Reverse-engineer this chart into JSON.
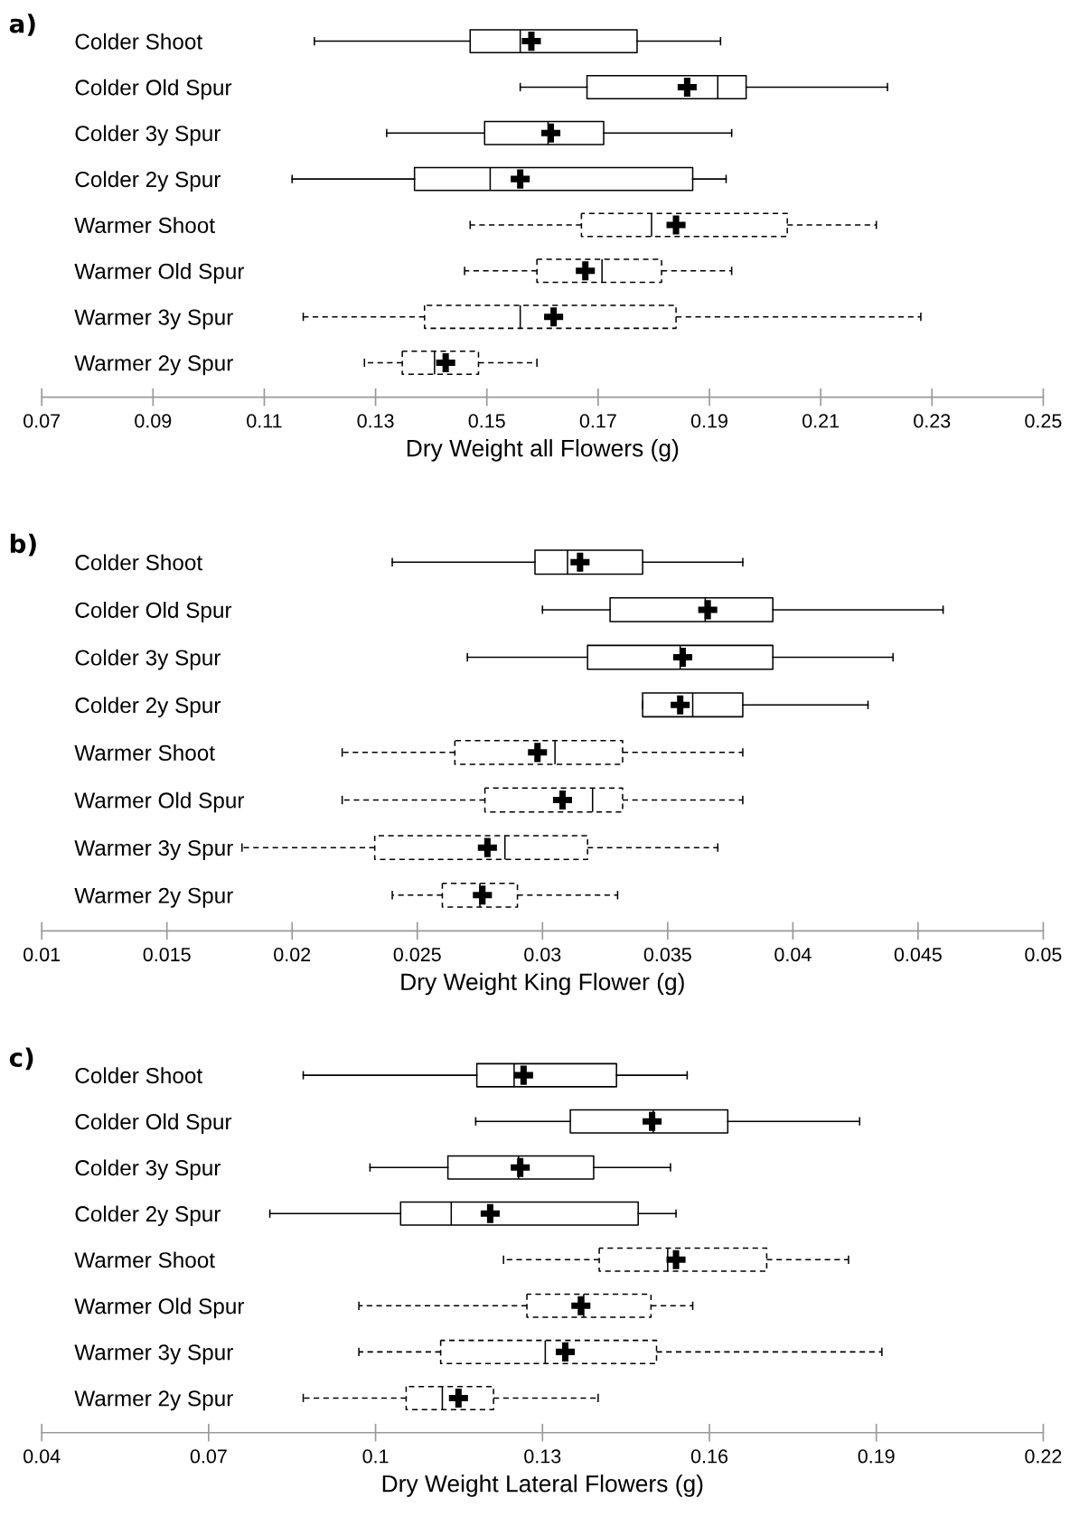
{
  "chart_data": [
    {
      "type": "box",
      "title": "a)",
      "xlabel": "Dry Weight all Flowers (g)",
      "orientation": "horizontal",
      "categories": [
        "Colder Shoot",
        "Colder Old Spur",
        "Colder 3y Spur",
        "Colder 2y Spur",
        "Warmer Shoot",
        "Warmer Old Spur",
        "Warmer 3y Spur",
        "Warmer 2y Spur"
      ],
      "xlim": [
        0.07,
        0.25
      ],
      "xticks": [
        0.07,
        0.09,
        0.11,
        0.13,
        0.15,
        0.17,
        0.19,
        0.21,
        0.23,
        0.25
      ],
      "grid": false,
      "legend": false,
      "series": [
        {
          "color": "#000000",
          "line_style": "solid",
          "boxes": [
            {
              "low": 0.119,
              "q1": 0.147,
              "median": 0.156,
              "q3": 0.177,
              "high": 0.192
            },
            {
              "low": 0.156,
              "q1": 0.168,
              "median": 0.1915,
              "q3": 0.1966,
              "high": 0.222
            },
            {
              "low": 0.132,
              "q1": 0.1496,
              "median": 0.161,
              "q3": 0.171,
              "high": 0.194
            },
            {
              "low": 0.115,
              "q1": 0.137,
              "median": 0.1506,
              "q3": 0.187,
              "high": 0.193
            },
            null,
            null,
            null,
            null
          ]
        },
        {
          "color": "#000000",
          "line_style": "dashed",
          "boxes": [
            null,
            null,
            null,
            null,
            {
              "low": 0.147,
              "q1": 0.167,
              "median": 0.1796,
              "q3": 0.204,
              "high": 0.22
            },
            {
              "low": 0.146,
              "q1": 0.159,
              "median": 0.1707,
              "q3": 0.1814,
              "high": 0.194
            },
            {
              "low": 0.117,
              "q1": 0.1388,
              "median": 0.156,
              "q3": 0.184,
              "high": 0.228
            },
            {
              "low": 0.128,
              "q1": 0.1348,
              "median": 0.1406,
              "q3": 0.1485,
              "high": 0.159
            }
          ]
        },
        {
          "type": "scatter",
          "color": "#000000",
          "marker": "cross",
          "values": [
            0.158,
            0.186,
            0.1615,
            0.156,
            0.184,
            0.1677,
            0.162,
            0.1426
          ]
        }
      ]
    },
    {
      "type": "box",
      "title": "b)",
      "xlabel": "Dry Weight King Flower (g)",
      "orientation": "horizontal",
      "categories": [
        "Colder Shoot",
        "Colder Old Spur",
        "Colder 3y Spur",
        "Colder 2y Spur",
        "Warmer Shoot",
        "Warmer Old Spur",
        "Warmer 3y Spur",
        "Warmer 2y Spur"
      ],
      "xlim": [
        0.01,
        0.05
      ],
      "xticks": [
        0.01,
        0.015,
        0.02,
        0.025,
        0.03,
        0.035,
        0.04,
        0.045,
        0.05
      ],
      "grid": false,
      "legend": false,
      "series": [
        {
          "color": "#000000",
          "line_style": "solid",
          "boxes": [
            {
              "low": 0.024,
              "q1": 0.0297,
              "median": 0.031,
              "q3": 0.034,
              "high": 0.038
            },
            {
              "low": 0.03,
              "q1": 0.0327,
              "median": 0.0365,
              "q3": 0.0392,
              "high": 0.046
            },
            {
              "low": 0.027,
              "q1": 0.0318,
              "median": 0.0355,
              "q3": 0.0392,
              "high": 0.044
            },
            {
              "low": 0.034,
              "q1": 0.034,
              "median": 0.036,
              "q3": 0.038,
              "high": 0.043
            },
            null,
            null,
            null,
            null
          ]
        },
        {
          "color": "#000000",
          "line_style": "dashed",
          "boxes": [
            null,
            null,
            null,
            null,
            {
              "low": 0.022,
              "q1": 0.0265,
              "median": 0.0305,
              "q3": 0.0332,
              "high": 0.038
            },
            {
              "low": 0.022,
              "q1": 0.0277,
              "median": 0.032,
              "q3": 0.0332,
              "high": 0.038
            },
            {
              "low": 0.018,
              "q1": 0.0233,
              "median": 0.0285,
              "q3": 0.0318,
              "high": 0.037
            },
            {
              "low": 0.024,
              "q1": 0.026,
              "median": 0.0275,
              "q3": 0.029,
              "high": 0.033
            }
          ]
        },
        {
          "type": "scatter",
          "color": "#000000",
          "marker": "cross",
          "values": [
            0.0315,
            0.0366,
            0.0356,
            0.0355,
            0.0298,
            0.0308,
            0.0278,
            0.0276
          ]
        }
      ]
    },
    {
      "type": "box",
      "title": "c)",
      "xlabel": "Dry Weight Lateral Flowers (g)",
      "orientation": "horizontal",
      "categories": [
        "Colder Shoot",
        "Colder Old Spur",
        "Colder 3y Spur",
        "Colder 2y Spur",
        "Warmer Shoot",
        "Warmer Old Spur",
        "Warmer 3y Spur",
        "Warmer 2y Spur"
      ],
      "xlim": [
        0.04,
        0.22
      ],
      "xticks": [
        0.04,
        0.07,
        0.1,
        0.13,
        0.16,
        0.19,
        0.22
      ],
      "grid": false,
      "legend": false,
      "series": [
        {
          "color": "#000000",
          "line_style": "solid",
          "boxes": [
            {
              "low": 0.087,
              "q1": 0.1182,
              "median": 0.1249,
              "q3": 0.1433,
              "high": 0.156
            },
            {
              "low": 0.118,
              "q1": 0.135,
              "median": 0.1499,
              "q3": 0.1633,
              "high": 0.187
            },
            {
              "low": 0.099,
              "q1": 0.113,
              "median": 0.1257,
              "q3": 0.1392,
              "high": 0.153
            },
            {
              "low": 0.081,
              "q1": 0.1045,
              "median": 0.1136,
              "q3": 0.1472,
              "high": 0.154
            },
            null,
            null,
            null,
            null
          ]
        },
        {
          "color": "#000000",
          "line_style": "dashed",
          "boxes": [
            null,
            null,
            null,
            null,
            {
              "low": 0.123,
              "q1": 0.1402,
              "median": 0.1525,
              "q3": 0.1703,
              "high": 0.185
            },
            {
              "low": 0.097,
              "q1": 0.1272,
              "median": 0.1374,
              "q3": 0.1495,
              "high": 0.157
            },
            {
              "low": 0.097,
              "q1": 0.1117,
              "median": 0.1305,
              "q3": 0.1505,
              "high": 0.191
            },
            {
              "low": 0.087,
              "q1": 0.1055,
              "median": 0.112,
              "q3": 0.1212,
              "high": 0.14
            }
          ]
        },
        {
          "type": "scatter",
          "color": "#000000",
          "marker": "cross",
          "values": [
            0.1266,
            0.1497,
            0.126,
            0.1206,
            0.154,
            0.1369,
            0.1341,
            0.1149
          ]
        }
      ]
    }
  ]
}
